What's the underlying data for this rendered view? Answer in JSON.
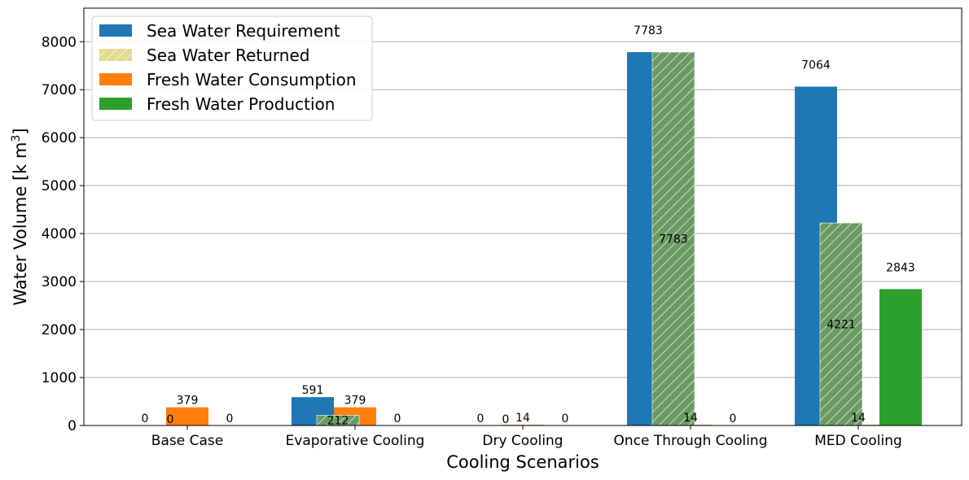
{
  "chart_data": {
    "type": "bar",
    "title": "",
    "xlabel": "Cooling Scenarios",
    "ylabel": "Water Volume [k m³]",
    "ylabel_base": "Water Volume [k m",
    "ylabel_sup": "3",
    "ylabel_end": "]",
    "ylim": [
      0,
      8700
    ],
    "yticks": [
      0,
      1000,
      2000,
      3000,
      4000,
      5000,
      6000,
      7000,
      8000
    ],
    "grid": "horizontal",
    "legend_position": "top-left",
    "categories": [
      "Base Case",
      "Evaporative Cooling",
      "Dry Cooling",
      "Once Through Cooling",
      "MED Cooling"
    ],
    "series": [
      {
        "name": "Sea Water Requirement",
        "values": [
          0,
          591,
          0,
          7783,
          7064
        ],
        "labels": [
          "0",
          "591",
          "0",
          "7783",
          "7064"
        ],
        "color": "#1f77b4"
      },
      {
        "name": "Sea Water Returned",
        "values": [
          0,
          212,
          0,
          7783,
          4221
        ],
        "labels": [
          "0",
          "212",
          "0",
          "7783",
          "4221"
        ],
        "color": "#6a9a62",
        "hatch": true
      },
      {
        "name": "Fresh Water Consumption",
        "values": [
          379,
          379,
          14,
          14,
          14
        ],
        "labels": [
          "379",
          "379",
          "14",
          "14",
          "14"
        ],
        "color": "#ff7f0e"
      },
      {
        "name": "Fresh Water Production",
        "values": [
          0,
          0,
          0,
          0,
          2843
        ],
        "labels": [
          "0",
          "0",
          "0",
          "0",
          "2843"
        ],
        "color": "#2ca02c"
      }
    ]
  }
}
